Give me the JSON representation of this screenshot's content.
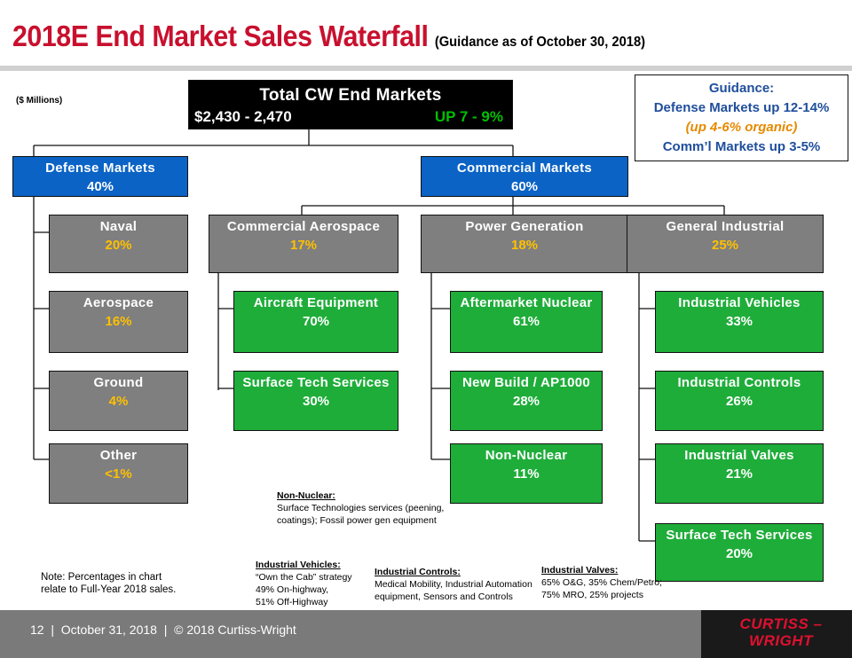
{
  "header": {
    "title": "2018E End Market Sales Waterfall",
    "subtitle": "(Guidance as of October 30, 2018)",
    "units": "($ Millions)"
  },
  "total": {
    "label": "Total CW End Markets",
    "range": "$2,430 - 2,470",
    "growth": "UP 7 - 9%"
  },
  "guidance": {
    "heading": "Guidance:",
    "defense": "Defense Markets up 12-14%",
    "organic": "(up 4-6% organic)",
    "commercial": "Comm’l Markets up 3-5%"
  },
  "defense": {
    "label": "Defense Markets",
    "pct": "40%",
    "children": [
      {
        "label": "Naval",
        "pct": "20%"
      },
      {
        "label": "Aerospace",
        "pct": "16%"
      },
      {
        "label": "Ground",
        "pct": "4%"
      },
      {
        "label": "Other",
        "pct": "<1%"
      }
    ]
  },
  "commercial": {
    "label": "Commercial Markets",
    "pct": "60%",
    "aero": {
      "label": "Commercial Aerospace",
      "pct": "17%",
      "children": [
        {
          "label": "Aircraft Equipment",
          "pct": "70%"
        },
        {
          "label": "Surface Tech Services",
          "pct": "30%"
        }
      ]
    },
    "power": {
      "label": "Power Generation",
      "pct": "18%",
      "children": [
        {
          "label": "Aftermarket Nuclear",
          "pct": "61%"
        },
        {
          "label": "New Build / AP1000",
          "pct": "28%"
        },
        {
          "label": "Non-Nuclear",
          "pct": "11%"
        }
      ]
    },
    "industrial": {
      "label": "General Industrial",
      "pct": "25%",
      "children": [
        {
          "label": "Industrial Vehicles",
          "pct": "33%"
        },
        {
          "label": "Industrial Controls",
          "pct": "26%"
        },
        {
          "label": "Industrial Valves",
          "pct": "21%"
        },
        {
          "label": "Surface Tech Services",
          "pct": "20%"
        }
      ]
    }
  },
  "notes": {
    "non_nuclear": {
      "title": "Non-Nuclear:",
      "l1": "Surface Technologies services (peening,",
      "l2": "coatings); Fossil power gen equipment"
    },
    "percent_note": {
      "l1": "Note: Percentages in chart",
      "l2": "relate to Full-Year 2018 sales."
    },
    "vehicles": {
      "title": "Industrial Vehicles:",
      "l1": "“Own the Cab” strategy",
      "l2": "49% On-highway,",
      "l3": "51% Off-Highway"
    },
    "controls": {
      "title": "Industrial Controls:",
      "l1": "Medical Mobility, Industrial Automation",
      "l2": "equipment, Sensors and Controls"
    },
    "valves": {
      "title": "Industrial Valves:",
      "l1": "65% O&G, 35% Chem/Petro;",
      "l2": "75% MRO, 25% projects"
    }
  },
  "footer": {
    "text": "12  |  October 31, 2018  |  © 2018 Curtiss-Wright",
    "logo_l1": "CURTISS –",
    "logo_l2": "WRIGHT"
  },
  "colors": {
    "title_red": "#c8102e",
    "blue": "#0b63c5",
    "gray": "#7f7f7f",
    "green": "#1fad3a",
    "gold": "#ffc000"
  }
}
